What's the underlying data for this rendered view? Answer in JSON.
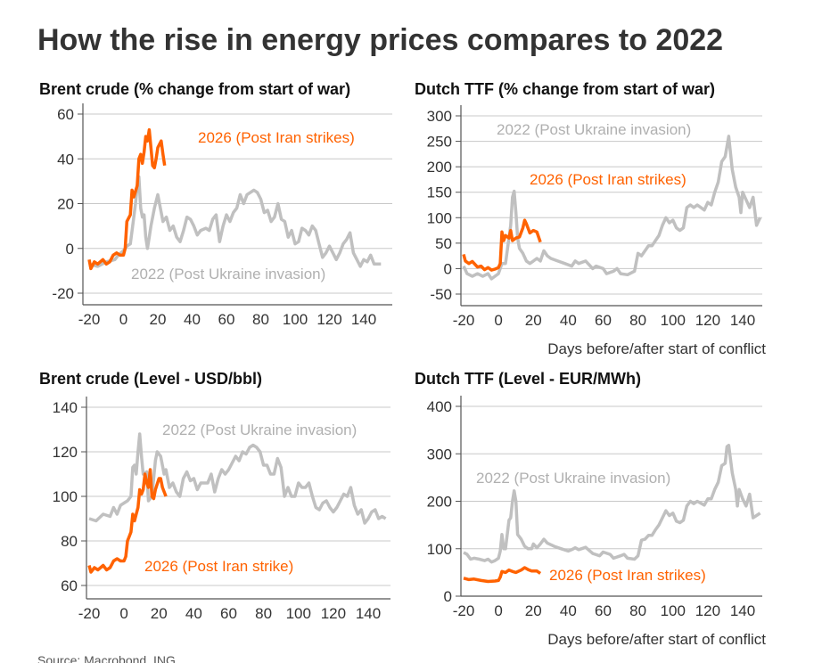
{
  "title": "How the rise in energy prices compares to 2022",
  "source": "Source: Macrobond, ING",
  "colors": {
    "2026": "#ff6200",
    "2022": "#c0c0c0"
  },
  "chart_data": [
    {
      "type": "line",
      "title": "Brent crude (% change from start of war)",
      "xlabel": "",
      "xlim": [
        -20,
        150
      ],
      "ylim": [
        -20,
        60
      ],
      "xticks": [
        -20,
        0,
        20,
        40,
        60,
        80,
        100,
        120,
        140
      ],
      "yticks": [
        -20,
        0,
        20,
        40,
        60
      ],
      "grid": true,
      "series": [
        {
          "name": "2022 (Post Ukraine invasion)",
          "color": "#c0c0c0",
          "x": [
            -20,
            -15,
            -10,
            -5,
            -3,
            0,
            2,
            4,
            6,
            7,
            8,
            9,
            10,
            11,
            12,
            13,
            14,
            15,
            16,
            18,
            20,
            21,
            23,
            25,
            27,
            29,
            31,
            33,
            35,
            37,
            39,
            41,
            43,
            45,
            48,
            50,
            52,
            54,
            56,
            58,
            60,
            62,
            64,
            66,
            68,
            70,
            72,
            74,
            76,
            78,
            80,
            82,
            84,
            86,
            88,
            90,
            92,
            94,
            96,
            98,
            100,
            102,
            104,
            106,
            108,
            110,
            112,
            114,
            116,
            118,
            120,
            122,
            124,
            126,
            128,
            130,
            132,
            134,
            136,
            138,
            140,
            142,
            144,
            146,
            148,
            150
          ],
          "y": [
            -7,
            -8,
            -6,
            -5,
            -3,
            -1,
            1,
            2,
            14,
            20,
            28,
            32,
            18,
            14,
            15,
            5,
            0,
            5,
            10,
            18,
            24,
            20,
            12,
            14,
            8,
            10,
            5,
            3,
            8,
            14,
            13,
            10,
            6,
            8,
            9,
            8,
            13,
            15,
            3,
            10,
            15,
            12,
            16,
            18,
            24,
            20,
            24,
            25,
            26,
            25,
            22,
            16,
            17,
            12,
            14,
            20,
            13,
            12,
            5,
            8,
            2,
            3,
            9,
            8,
            6,
            10,
            8,
            2,
            -4,
            -2,
            1,
            -2,
            -5,
            -2,
            2,
            4,
            7,
            -2,
            -5,
            -8,
            -5,
            -6,
            -3,
            -7,
            -7,
            -7
          ]
        },
        {
          "name": "2026 (Post Iran strikes)",
          "color": "#ff6200",
          "x": [
            -20,
            -19,
            -17,
            -15,
            -12,
            -10,
            -8,
            -6,
            -4,
            -2,
            0,
            1,
            2,
            4,
            5,
            6,
            8,
            9,
            10,
            11,
            12,
            13,
            14,
            15,
            16,
            17,
            18,
            19,
            20,
            22,
            23,
            24
          ],
          "y": [
            -5,
            -9,
            -6,
            -7,
            -5,
            -7,
            -6,
            -3,
            -2,
            -3,
            -3,
            0,
            12,
            15,
            26,
            23,
            28,
            40,
            42,
            38,
            43,
            50,
            48,
            53,
            45,
            37,
            36,
            40,
            45,
            48,
            42,
            37
          ]
        }
      ]
    },
    {
      "type": "line",
      "title": "Dutch TTF (% change from start of war)",
      "xlabel": "Days before/after start of conflict",
      "xlim": [
        -20,
        150
      ],
      "ylim": [
        -50,
        300
      ],
      "xticks": [
        -20,
        0,
        20,
        40,
        60,
        80,
        100,
        120,
        140
      ],
      "yticks": [
        -50,
        0,
        50,
        100,
        150,
        200,
        250,
        300
      ],
      "grid": true,
      "series": [
        {
          "name": "2022 (Post Ukraine invasion)",
          "color": "#c0c0c0",
          "x": [
            -20,
            -18,
            -15,
            -12,
            -9,
            -6,
            -4,
            -2,
            0,
            2,
            4,
            6,
            7,
            8,
            9,
            10,
            11,
            12,
            14,
            16,
            18,
            20,
            22,
            24,
            26,
            28,
            30,
            34,
            38,
            42,
            44,
            46,
            50,
            54,
            56,
            60,
            62,
            66,
            68,
            70,
            74,
            78,
            80,
            82,
            84,
            86,
            88,
            90,
            92,
            94,
            96,
            98,
            100,
            102,
            104,
            106,
            108,
            110,
            112,
            114,
            118,
            120,
            122,
            124,
            126,
            128,
            130,
            132,
            134,
            136,
            138,
            139,
            140,
            142,
            144,
            146,
            148,
            150
          ],
          "y": [
            5,
            -10,
            -15,
            -10,
            -15,
            -10,
            -20,
            -15,
            -10,
            10,
            10,
            60,
            85,
            140,
            152,
            110,
            60,
            40,
            30,
            15,
            10,
            15,
            20,
            15,
            35,
            25,
            20,
            15,
            10,
            5,
            15,
            10,
            15,
            0,
            5,
            0,
            -10,
            -5,
            0,
            -10,
            -12,
            -5,
            30,
            25,
            35,
            45,
            45,
            55,
            65,
            85,
            100,
            90,
            95,
            80,
            75,
            80,
            120,
            125,
            120,
            125,
            115,
            130,
            125,
            150,
            170,
            210,
            220,
            260,
            195,
            160,
            140,
            110,
            150,
            135,
            120,
            140,
            85,
            100
          ]
        },
        {
          "name": "2026 (Post Iran strikes)",
          "color": "#ff6200",
          "x": [
            -20,
            -19,
            -17,
            -15,
            -12,
            -10,
            -8,
            -6,
            -4,
            -2,
            0,
            1,
            2,
            3,
            4,
            6,
            7,
            8,
            10,
            12,
            14,
            15,
            16,
            18,
            20,
            22,
            24
          ],
          "y": [
            28,
            15,
            10,
            14,
            3,
            5,
            -2,
            2,
            -3,
            -1,
            2,
            10,
            72,
            55,
            65,
            60,
            75,
            55,
            60,
            62,
            80,
            95,
            88,
            70,
            75,
            72,
            52
          ]
        }
      ]
    },
    {
      "type": "line",
      "title": "Brent crude (Level - USD/bbl)",
      "xlabel": "",
      "xlim": [
        -20,
        150
      ],
      "ylim": [
        60,
        140
      ],
      "xticks": [
        -20,
        0,
        20,
        40,
        60,
        80,
        100,
        120,
        140
      ],
      "yticks": [
        60,
        80,
        100,
        120,
        140
      ],
      "grid": true,
      "series": [
        {
          "name": "2022 (Post Ukraine invasion)",
          "color": "#c0c0c0",
          "x": [
            -20,
            -16,
            -12,
            -8,
            -6,
            -4,
            -2,
            0,
            2,
            3,
            4,
            5,
            6,
            7,
            8,
            9,
            10,
            11,
            13,
            14,
            16,
            18,
            19,
            21,
            23,
            24,
            26,
            28,
            30,
            32,
            34,
            36,
            38,
            40,
            42,
            44,
            48,
            50,
            52,
            54,
            56,
            58,
            60,
            62,
            64,
            66,
            68,
            70,
            72,
            74,
            76,
            78,
            80,
            82,
            84,
            86,
            88,
            90,
            92,
            94,
            96,
            98,
            100,
            102,
            104,
            106,
            108,
            110,
            112,
            114,
            116,
            118,
            120,
            122,
            124,
            126,
            128,
            130,
            132,
            134,
            136,
            138,
            140,
            142,
            144,
            146,
            148,
            150
          ],
          "y": [
            90,
            89,
            92,
            91,
            95,
            92,
            96,
            97,
            98,
            99,
            100,
            113,
            114,
            110,
            120,
            128,
            118,
            110,
            111,
            98,
            100,
            116,
            120,
            118,
            110,
            112,
            104,
            106,
            102,
            100,
            108,
            111,
            107,
            108,
            103,
            106,
            106,
            110,
            102,
            108,
            112,
            110,
            112,
            115,
            118,
            116,
            120,
            119,
            122,
            123,
            122,
            120,
            114,
            114,
            110,
            110,
            117,
            113,
            100,
            104,
            100,
            100,
            106,
            104,
            104,
            106,
            100,
            95,
            94,
            97,
            98,
            95,
            93,
            95,
            98,
            101,
            100,
            104,
            96,
            92,
            94,
            88,
            90,
            93,
            94,
            90,
            91,
            90
          ]
        },
        {
          "name": "2026 (Post Iran strike)",
          "color": "#ff6200",
          "x": [
            -20,
            -19,
            -17,
            -15,
            -12,
            -10,
            -8,
            -6,
            -4,
            -2,
            0,
            1,
            2,
            3,
            4,
            5,
            6,
            7,
            8,
            9,
            10,
            11,
            12,
            13,
            14,
            15,
            16,
            17,
            18,
            20,
            21,
            22,
            24
          ],
          "y": [
            69,
            66,
            68,
            67,
            69,
            67,
            68,
            71,
            72,
            71,
            71,
            73,
            80,
            82,
            84,
            92,
            89,
            92,
            95,
            103,
            101,
            103,
            110,
            106,
            104,
            112,
            100,
            99,
            103,
            108,
            108,
            104,
            100
          ]
        }
      ]
    },
    {
      "type": "line",
      "title": "Dutch TTF (Level - EUR/MWh)",
      "xlabel": "Days before/after start of conflict",
      "xlim": [
        -20,
        150
      ],
      "ylim": [
        0,
        400
      ],
      "xticks": [
        -20,
        0,
        20,
        40,
        60,
        80,
        100,
        120,
        140
      ],
      "yticks": [
        0,
        100,
        200,
        300,
        400
      ],
      "grid": true,
      "series": [
        {
          "name": "2022 (Post Ukraine invasion)",
          "color": "#c0c0c0",
          "x": [
            -20,
            -18,
            -16,
            -14,
            -11,
            -8,
            -6,
            -4,
            -2,
            0,
            1,
            2,
            3,
            4,
            6,
            7,
            8,
            9,
            10,
            11,
            13,
            15,
            17,
            19,
            20,
            22,
            24,
            26,
            28,
            32,
            36,
            40,
            42,
            44,
            46,
            50,
            54,
            58,
            60,
            64,
            66,
            70,
            72,
            74,
            78,
            80,
            82,
            84,
            86,
            88,
            90,
            92,
            94,
            96,
            98,
            100,
            102,
            104,
            106,
            108,
            110,
            112,
            114,
            118,
            120,
            122,
            124,
            126,
            128,
            130,
            131,
            132,
            134,
            136,
            137,
            138,
            140,
            142,
            144,
            146,
            148,
            150
          ],
          "y": [
            92,
            88,
            78,
            80,
            78,
            75,
            78,
            72,
            75,
            80,
            95,
            130,
            100,
            100,
            160,
            165,
            200,
            222,
            200,
            130,
            120,
            105,
            100,
            100,
            110,
            102,
            110,
            120,
            112,
            105,
            100,
            95,
            98,
            102,
            98,
            103,
            90,
            85,
            93,
            88,
            80,
            85,
            88,
            80,
            78,
            85,
            118,
            120,
            128,
            128,
            140,
            150,
            165,
            180,
            170,
            175,
            158,
            155,
            160,
            190,
            200,
            195,
            200,
            192,
            205,
            205,
            225,
            240,
            275,
            280,
            315,
            318,
            260,
            225,
            190,
            225,
            205,
            190,
            215,
            165,
            170,
            175
          ]
        },
        {
          "name": "2026 (Post Iran strikes)",
          "color": "#ff6200",
          "x": [
            -20,
            -17,
            -14,
            -10,
            -6,
            -2,
            0,
            1,
            2,
            4,
            6,
            8,
            10,
            13,
            15,
            17,
            19,
            22,
            24
          ],
          "y": [
            38,
            35,
            36,
            33,
            31,
            32,
            33,
            40,
            52,
            50,
            55,
            52,
            50,
            55,
            60,
            56,
            53,
            53,
            48
          ]
        }
      ]
    }
  ]
}
